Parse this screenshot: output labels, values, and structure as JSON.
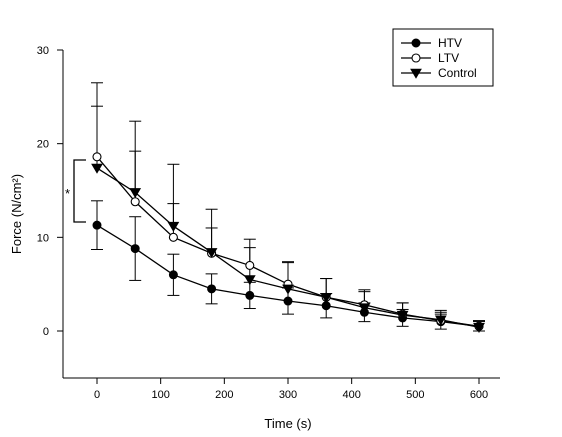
{
  "chart_data": {
    "type": "line",
    "title": "",
    "xlabel": "Time (s)",
    "ylabel": "Force (N/cm²)",
    "xlim": [
      -60,
      660
    ],
    "ylim": [
      -5,
      30
    ],
    "xticks": [
      0,
      100,
      200,
      300,
      400,
      500,
      600
    ],
    "yticks": [
      0,
      10,
      20,
      30
    ],
    "grid": false,
    "legend_position": "top-right",
    "series": [
      {
        "name": "HTV",
        "marker": "filled-circle",
        "color": "#000000",
        "x": [
          0,
          60,
          120,
          180,
          240,
          300,
          360,
          420,
          480,
          540,
          600
        ],
        "y": [
          11.3,
          8.8,
          6.0,
          4.5,
          3.8,
          3.2,
          2.7,
          2.0,
          1.4,
          1.0,
          0.5
        ],
        "err": [
          2.6,
          3.4,
          2.2,
          1.6,
          1.4,
          1.4,
          1.3,
          1.0,
          0.9,
          0.8,
          0.5
        ]
      },
      {
        "name": "LTV",
        "marker": "open-circle",
        "color": "#000000",
        "x": [
          0,
          60,
          120,
          180,
          240,
          300,
          360,
          420,
          480,
          540,
          600
        ],
        "y": [
          18.6,
          13.8,
          10.0,
          8.3,
          7.0,
          5.0,
          3.6,
          2.8,
          1.8,
          1.1,
          0.5
        ],
        "err": [
          7.9,
          5.4,
          3.6,
          2.7,
          2.8,
          2.3,
          2.0,
          1.6,
          1.2,
          0.9,
          0.6
        ]
      },
      {
        "name": "Control",
        "marker": "filled-triangle-down",
        "color": "#000000",
        "x": [
          0,
          60,
          120,
          180,
          240,
          300,
          360,
          420,
          480,
          540,
          600
        ],
        "y": [
          17.4,
          14.8,
          11.2,
          8.4,
          5.5,
          4.5,
          3.6,
          2.5,
          1.7,
          1.2,
          0.4
        ],
        "err": [
          6.6,
          7.6,
          6.6,
          4.6,
          3.4,
          2.9,
          2.0,
          1.7,
          1.3,
          1.0,
          0.7
        ]
      }
    ],
    "annotation": {
      "text": "*"
    }
  }
}
